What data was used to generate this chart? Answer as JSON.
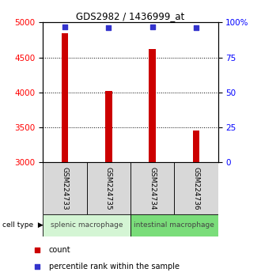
{
  "title": "GDS2982 / 1436999_at",
  "samples": [
    "GSM224733",
    "GSM224735",
    "GSM224734",
    "GSM224736"
  ],
  "counts": [
    4850,
    4025,
    4625,
    3450
  ],
  "percentiles": [
    97,
    96,
    97,
    96
  ],
  "ylim_left": [
    3000,
    5000
  ],
  "ylim_right": [
    0,
    100
  ],
  "yticks_left": [
    3000,
    3500,
    4000,
    4500,
    5000
  ],
  "yticks_right": [
    0,
    25,
    50,
    75,
    100
  ],
  "ytick_labels_right": [
    "0",
    "25",
    "50",
    "75",
    "100%"
  ],
  "bar_color": "#cc0000",
  "percentile_color": "#3333cc",
  "cell_types": [
    {
      "label": "splenic macrophage",
      "samples": [
        0,
        1
      ],
      "color": "#d4f5d4"
    },
    {
      "label": "intestinal macrophage",
      "samples": [
        2,
        3
      ],
      "color": "#7add7a"
    }
  ],
  "sample_box_color": "#d8d8d8",
  "bar_width": 0.15
}
